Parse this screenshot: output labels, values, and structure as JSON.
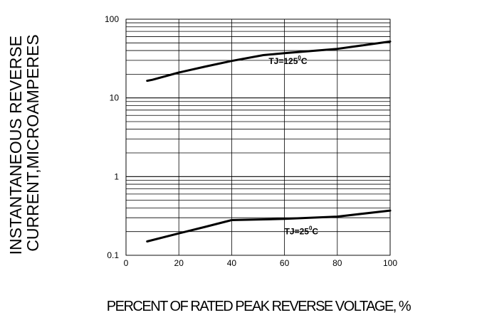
{
  "chart_data": {
    "type": "line",
    "xlabel": "PERCENT  OF  RATED PEAK REVERSE VOLTAGE, %",
    "ylabel_lines": [
      "INSTANTANEOUS REVERSE",
      "CURRENT,MICROAMPERES"
    ],
    "xlim": [
      0,
      100
    ],
    "ylim": [
      0.1,
      100
    ],
    "yscale": "log",
    "grid": true,
    "x_ticks": [
      "0",
      "20",
      "40",
      "60",
      "80",
      "100"
    ],
    "y_ticks": [
      "0.1",
      "1",
      "10",
      "100"
    ],
    "series": [
      {
        "name": "TJ=125°C",
        "label_base": "TJ=125",
        "label_sup": "0",
        "label_unit": "C",
        "x": [
          8,
          10,
          20,
          30,
          40,
          52,
          60,
          80,
          100
        ],
        "y": [
          16.5,
          17,
          21,
          25,
          29.5,
          35,
          37,
          42,
          52
        ]
      },
      {
        "name": "TJ=25°C",
        "label_base": "TJ=25",
        "label_sup": "0",
        "label_unit": "C",
        "x": [
          8,
          20,
          30,
          40,
          60,
          80,
          100
        ],
        "y": [
          0.15,
          0.19,
          0.23,
          0.28,
          0.29,
          0.31,
          0.37
        ]
      }
    ]
  }
}
